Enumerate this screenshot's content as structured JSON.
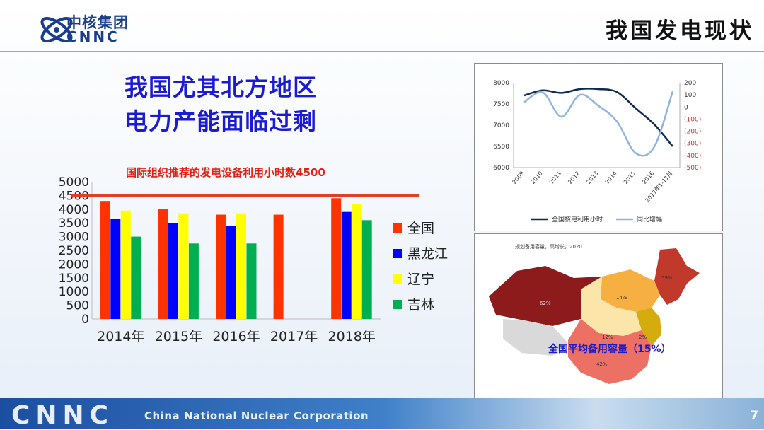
{
  "header": {
    "logo_cn": "中核集团",
    "logo_en": "CNNC",
    "slide_title": "我国发电现状"
  },
  "headline": {
    "line1": "我国尤其北方地区",
    "line2": "电力产能面临过剩"
  },
  "colors": {
    "national": "#ff3300",
    "heilongjiang": "#0000ff",
    "liaoning": "#ffff00",
    "jilin": "#00b050",
    "reference_line": "#e0401f",
    "headline": "#1c1ccf"
  },
  "chart_data": [
    {
      "type": "bar",
      "title": "",
      "reference_line": {
        "value": 4500,
        "label": "国际组织推荐的发电设备利用小时数4500"
      },
      "categories": [
        "2014年",
        "2015年",
        "2016年",
        "2017年",
        "2018年"
      ],
      "series": [
        {
          "name": "全国",
          "values": [
            4300,
            4000,
            3800,
            3800,
            4400
          ]
        },
        {
          "name": "黑龙江",
          "values": [
            3650,
            3500,
            3400,
            null,
            3900
          ]
        },
        {
          "name": "辽宁",
          "values": [
            3950,
            3850,
            3850,
            null,
            4200
          ]
        },
        {
          "name": "吉林",
          "values": [
            3000,
            2750,
            2750,
            null,
            3600
          ]
        }
      ],
      "yticks": [
        0,
        500,
        1000,
        1500,
        2000,
        2500,
        3000,
        3500,
        4000,
        4500,
        5000
      ],
      "ylim": [
        0,
        5000
      ],
      "legend": "right"
    },
    {
      "type": "line",
      "title": "",
      "x": [
        "2009",
        "2010",
        "2011",
        "2012",
        "2013",
        "2014",
        "2015",
        "2016",
        "2017年1-11月"
      ],
      "series": [
        {
          "name": "全国核电利用小时",
          "axis": "left",
          "values": [
            7700,
            7820,
            7760,
            7850,
            7850,
            7780,
            7400,
            7020,
            6500
          ]
        },
        {
          "name": "同比增幅",
          "axis": "right",
          "values": [
            40,
            120,
            -80,
            100,
            10,
            -120,
            -380,
            -330,
            130
          ]
        }
      ],
      "ylim_left": [
        6000,
        8000
      ],
      "yticks_left": [
        "8000",
        "7500",
        "7000",
        "6500",
        "6000"
      ],
      "ylim_right": [
        -500,
        200
      ],
      "yticks_right": [
        "200",
        "100",
        "0",
        "(100)",
        "(200)",
        "(300)",
        "(400)",
        "(500)"
      ],
      "legend": "bottom"
    }
  ],
  "map": {
    "caption": "规划备用容量，高增长，2020",
    "labels": [
      "59%",
      "14%",
      "62%",
      "12%",
      "2%",
      "42%"
    ],
    "summary": "全国平均备用容量（15%）"
  },
  "footer": {
    "brand": "CNNC",
    "org_name": "China National Nuclear Corporation",
    "page": "7"
  }
}
